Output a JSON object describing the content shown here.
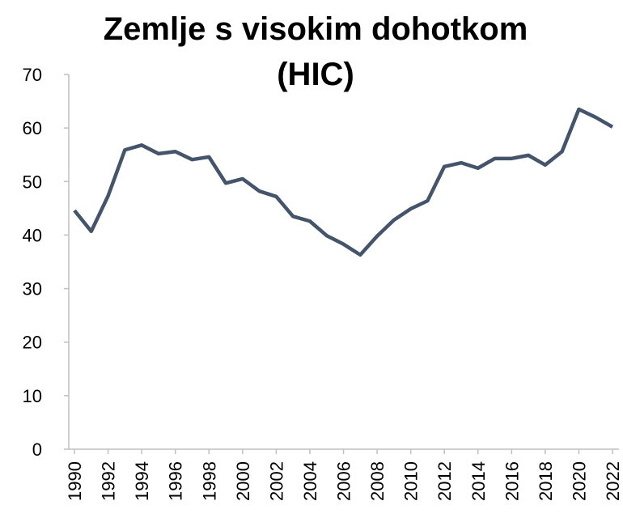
{
  "chart_data": {
    "type": "line",
    "title": "Zemlje s visokim dohotkom (HIC)",
    "x": [
      1990,
      1991,
      1992,
      1993,
      1994,
      1995,
      1996,
      1997,
      1998,
      1999,
      2000,
      2001,
      2002,
      2003,
      2004,
      2005,
      2006,
      2007,
      2008,
      2009,
      2010,
      2011,
      2012,
      2013,
      2014,
      2015,
      2016,
      2017,
      2018,
      2019,
      2020,
      2021,
      2022
    ],
    "series": [
      {
        "name": "HIC",
        "color": "#44546a",
        "values": [
          44.6,
          40.7,
          47.3,
          55.9,
          56.8,
          55.2,
          55.6,
          54.1,
          54.6,
          49.7,
          50.5,
          48.2,
          47.2,
          43.5,
          42.6,
          39.9,
          38.3,
          36.3,
          39.8,
          42.8,
          44.9,
          46.4,
          52.8,
          53.5,
          52.5,
          54.3,
          54.3,
          54.9,
          53.1,
          55.6,
          63.5,
          62.0,
          60.2
        ]
      }
    ],
    "xlim": [
      1990,
      2022
    ],
    "xticks": [
      1990,
      1992,
      1994,
      1996,
      1998,
      2000,
      2002,
      2004,
      2006,
      2008,
      2010,
      2012,
      2014,
      2016,
      2018,
      2020,
      2022
    ],
    "ylim": [
      0,
      70
    ],
    "yticks": [
      0,
      10,
      20,
      30,
      40,
      50,
      60,
      70
    ],
    "grid": false
  }
}
